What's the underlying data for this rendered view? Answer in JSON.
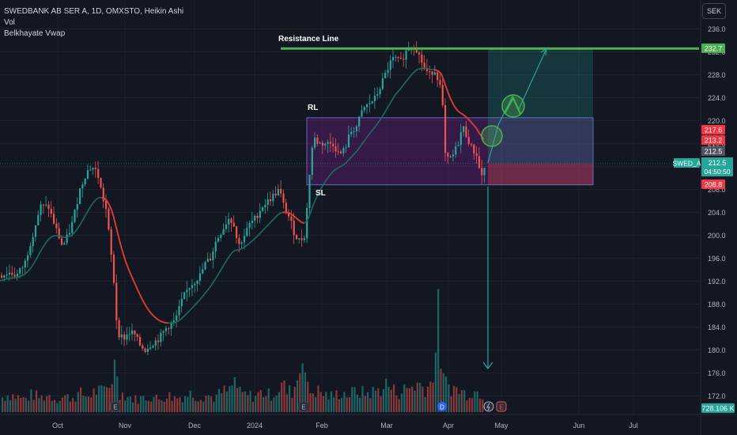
{
  "header": {
    "symbol_line": "SWEDBANK AB SER A, 1D, OMXSTO, Heikin Ashi",
    "indicator_vol": "Vol",
    "indicator_vwap": "Belkhayate Vwap",
    "currency": "SEK"
  },
  "annotations": {
    "resistance": "Resistance Line",
    "rl": "RL",
    "sl": "SL"
  },
  "price_labels": {
    "resistance": "232.7",
    "red1": "217.6",
    "red2": "213.2",
    "grey": "212.5",
    "symbol": "SWED_A",
    "last": "212.5",
    "countdown": "04:50:50",
    "stop": "208.8",
    "volume": "728.106 K"
  },
  "colors": {
    "background": "#131722",
    "bull": "#26a69a",
    "bear": "#ef5350",
    "resistance": "#4caf50",
    "vwap_up": "#1e6b60",
    "vwap_down": "#e53935",
    "rl_zone": "#8e24aa",
    "arrow": "#26a69a"
  },
  "chart_data": {
    "type": "candlestick",
    "style": "Heikin Ashi",
    "y_axis_ticks": [
      "236.0",
      "232.0",
      "228.0",
      "224.0",
      "220.0",
      "216.0",
      "212.0",
      "208.0",
      "204.0",
      "200.0",
      "196.0",
      "192.0",
      "188.0",
      "184.0",
      "180.0",
      "176.0",
      "172.0"
    ],
    "y_axis_values": [
      236,
      232,
      228,
      224,
      220,
      216,
      212,
      208,
      204,
      200,
      196,
      192,
      188,
      184,
      180,
      176,
      172
    ],
    "x_axis_ticks": [
      "Oct",
      "Nov",
      "Dec",
      "2024",
      "Feb",
      "Mar",
      "Apr",
      "May",
      "Jun",
      "Jul"
    ],
    "ylim": [
      169.5,
      237.5
    ],
    "price_path": [
      [
        0,
        193
      ],
      [
        10,
        193.5
      ],
      [
        20,
        193
      ],
      [
        30,
        195
      ],
      [
        40,
        200
      ],
      [
        50,
        205
      ],
      [
        60,
        205
      ],
      [
        70,
        201
      ],
      [
        78,
        198
      ],
      [
        85,
        200
      ],
      [
        90,
        202
      ],
      [
        95,
        205
      ],
      [
        100,
        208
      ],
      [
        108,
        211
      ],
      [
        115,
        212
      ],
      [
        122,
        211
      ],
      [
        128,
        207
      ],
      [
        134,
        204
      ],
      [
        138,
        198
      ],
      [
        142,
        194
      ],
      [
        145,
        187
      ],
      [
        148,
        183
      ],
      [
        155,
        182
      ],
      [
        162,
        183
      ],
      [
        168,
        183
      ],
      [
        175,
        181
      ],
      [
        182,
        180
      ],
      [
        190,
        181
      ],
      [
        200,
        182
      ],
      [
        210,
        184
      ],
      [
        220,
        185
      ],
      [
        230,
        189
      ],
      [
        238,
        191
      ],
      [
        245,
        192
      ],
      [
        252,
        193
      ],
      [
        258,
        195
      ],
      [
        265,
        196
      ],
      [
        272,
        199
      ],
      [
        280,
        201
      ],
      [
        288,
        203
      ],
      [
        295,
        202
      ],
      [
        300,
        198
      ],
      [
        308,
        200
      ],
      [
        315,
        202
      ],
      [
        322,
        203
      ],
      [
        330,
        205
      ],
      [
        338,
        206
      ],
      [
        345,
        207
      ],
      [
        352,
        208
      ],
      [
        358,
        205
      ],
      [
        365,
        203
      ],
      [
        372,
        200
      ],
      [
        378,
        199
      ],
      [
        384,
        200
      ],
      [
        388,
        206
      ],
      [
        392,
        214
      ],
      [
        396,
        217
      ],
      [
        402,
        216
      ],
      [
        410,
        216
      ],
      [
        420,
        216
      ],
      [
        428,
        214
      ],
      [
        435,
        215
      ],
      [
        442,
        218
      ],
      [
        450,
        219
      ],
      [
        458,
        222
      ],
      [
        466,
        223
      ],
      [
        474,
        224
      ],
      [
        480,
        226
      ],
      [
        486,
        228
      ],
      [
        492,
        230
      ],
      [
        498,
        231
      ],
      [
        505,
        230
      ],
      [
        512,
        232
      ],
      [
        518,
        233
      ],
      [
        524,
        233
      ],
      [
        530,
        231
      ],
      [
        536,
        229
      ],
      [
        542,
        228
      ],
      [
        548,
        229
      ],
      [
        554,
        227
      ],
      [
        558,
        224
      ],
      [
        562,
        214
      ],
      [
        566,
        213
      ],
      [
        572,
        214
      ],
      [
        578,
        216
      ],
      [
        584,
        219
      ],
      [
        590,
        217
      ],
      [
        596,
        215
      ],
      [
        602,
        214
      ],
      [
        607,
        210
      ],
      [
        612,
        212
      ]
    ],
    "volume_path": [
      [
        0,
        20
      ],
      [
        10,
        25
      ],
      [
        20,
        22
      ],
      [
        30,
        18
      ],
      [
        40,
        25
      ],
      [
        50,
        20
      ],
      [
        60,
        24
      ],
      [
        70,
        18
      ],
      [
        80,
        22
      ],
      [
        90,
        20
      ],
      [
        100,
        26
      ],
      [
        110,
        22
      ],
      [
        120,
        30
      ],
      [
        128,
        28
      ],
      [
        136,
        35
      ],
      [
        142,
        55
      ],
      [
        146,
        75
      ],
      [
        150,
        28
      ],
      [
        160,
        22
      ],
      [
        170,
        18
      ],
      [
        180,
        20
      ],
      [
        190,
        22
      ],
      [
        200,
        18
      ],
      [
        210,
        24
      ],
      [
        220,
        20
      ],
      [
        230,
        22
      ],
      [
        240,
        26
      ],
      [
        250,
        22
      ],
      [
        260,
        24
      ],
      [
        270,
        20
      ],
      [
        280,
        28
      ],
      [
        290,
        30
      ],
      [
        296,
        45
      ],
      [
        302,
        26
      ],
      [
        310,
        24
      ],
      [
        320,
        22
      ],
      [
        330,
        28
      ],
      [
        340,
        24
      ],
      [
        350,
        30
      ],
      [
        356,
        40
      ],
      [
        362,
        28
      ],
      [
        370,
        30
      ],
      [
        378,
        60
      ],
      [
        382,
        110
      ],
      [
        386,
        35
      ],
      [
        392,
        28
      ],
      [
        400,
        30
      ],
      [
        410,
        24
      ],
      [
        420,
        22
      ],
      [
        430,
        28
      ],
      [
        440,
        24
      ],
      [
        450,
        30
      ],
      [
        460,
        26
      ],
      [
        470,
        28
      ],
      [
        480,
        32
      ],
      [
        488,
        40
      ],
      [
        496,
        30
      ],
      [
        504,
        28
      ],
      [
        512,
        32
      ],
      [
        520,
        36
      ],
      [
        528,
        40
      ],
      [
        536,
        34
      ],
      [
        544,
        40
      ],
      [
        550,
        90
      ],
      [
        554,
        138
      ],
      [
        558,
        45
      ],
      [
        564,
        38
      ],
      [
        572,
        34
      ],
      [
        580,
        30
      ],
      [
        588,
        26
      ],
      [
        596,
        30
      ],
      [
        604,
        28
      ],
      [
        612,
        26
      ]
    ],
    "resistance_level": 232.7,
    "rl_zone_top": 220.5,
    "rl_zone_bottom": 208.8,
    "entry_level": 212.5,
    "target_level": 232.7,
    "stop_level": 208.8,
    "projection": {
      "from": 212.5,
      "to": 232.7,
      "down_to": 176.0
    }
  }
}
